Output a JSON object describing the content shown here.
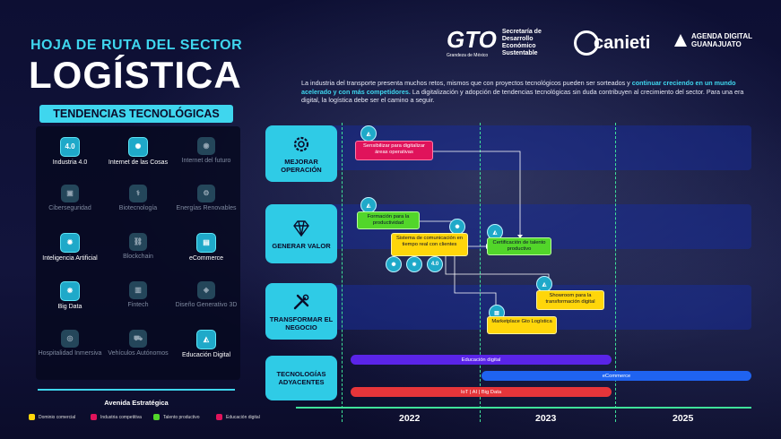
{
  "header": {
    "subtitle": "HOJA DE RUTA DEL SECTOR",
    "title": "LOGÍSTICA",
    "intro_a": "La industria del transporte presenta muchos retos, mismos que con proyectos tecnológicos pueden ser sorteados y ",
    "intro_b": "continuar creciendo en un mundo acelerado y con más competidores.",
    "intro_c": " La digitalización y adopción de tendencias tecnológicas sin duda contribuyen al crecimiento del sector. Para una era digital, la logística debe ser el camino a seguir."
  },
  "logos": {
    "gto": "GTO",
    "gto_tagline": "Grandeza de México",
    "gto_secretaria": "Secretaría de Desarrollo Económico Sustentable",
    "canieti": "canieti",
    "agenda_line1": "AGENDA DIGITAL",
    "agenda_line2": "GUANAJUATO"
  },
  "trends": {
    "heading": "TENDENCIAS TECNOLÓGICAS",
    "items": [
      {
        "label": "Industria 4.0",
        "glyph": "4.0",
        "active": true
      },
      {
        "label": "Internet de las Cosas",
        "glyph": "✺",
        "active": true
      },
      {
        "label": "Internet del futuro",
        "glyph": "◉",
        "active": false
      },
      {
        "label": "Ciberseguridad",
        "glyph": "▣",
        "active": false
      },
      {
        "label": "Biotecnología",
        "glyph": "⚕",
        "active": false
      },
      {
        "label": "Energías Renovables",
        "glyph": "⚙",
        "active": false
      },
      {
        "label": "Inteligencia Artificial",
        "glyph": "✹",
        "active": true
      },
      {
        "label": "Blockchain",
        "glyph": "⛓",
        "active": false
      },
      {
        "label": "eCommerce",
        "glyph": "▤",
        "active": true
      },
      {
        "label": "Big Data",
        "glyph": "❋",
        "active": true
      },
      {
        "label": "Fintech",
        "glyph": "▥",
        "active": false
      },
      {
        "label": "Diseño Generativo 3D",
        "glyph": "◈",
        "active": false
      },
      {
        "label": "Hospitalidad Inmersiva",
        "glyph": "◎",
        "active": false
      },
      {
        "label": "Vehículos Autónomos",
        "glyph": "⛟",
        "active": false
      },
      {
        "label": "Educación Digital",
        "glyph": "◭",
        "active": true
      }
    ]
  },
  "legend": {
    "title": "Avenida Estratégica",
    "items": [
      {
        "label": "Dominio comercial",
        "color": "#ffd60a"
      },
      {
        "label": "Industria competitiva",
        "color": "#e0135b"
      },
      {
        "label": "Talento productivo",
        "color": "#52d62a"
      },
      {
        "label": "Educación digital",
        "color": "#e0135b"
      }
    ]
  },
  "roadmap": {
    "categories": [
      {
        "label": "MEJORAR OPERACIÓN"
      },
      {
        "label": "GENERAR VALOR"
      },
      {
        "label": "TRANSFORMAR EL NEGOCIO"
      },
      {
        "label": "TECNOLOGÍAS ADYACENTES"
      }
    ],
    "projects": {
      "sensibilizar": "Sensibilizar para digitalizar áreas operativas",
      "formacion": "Formación para la productividad",
      "sistema": "Sistema de comunicación en tiempo real con clientes",
      "certificacion": "Certificación de talento productivo",
      "showroom": "Showroom para la transformación digital",
      "marketplace": "Marketplace Gto Logística"
    },
    "badge_40": "4.0",
    "bars": {
      "educacion": "Educación digital",
      "ecommerce": "eCommerce",
      "iot": "IoT | AI | Big Data"
    },
    "bar_colors": {
      "educacion": "#5a24e8",
      "ecommerce": "#1f63f0",
      "iot": "#e6353a"
    },
    "years": [
      "2022",
      "2023",
      "2025"
    ]
  }
}
